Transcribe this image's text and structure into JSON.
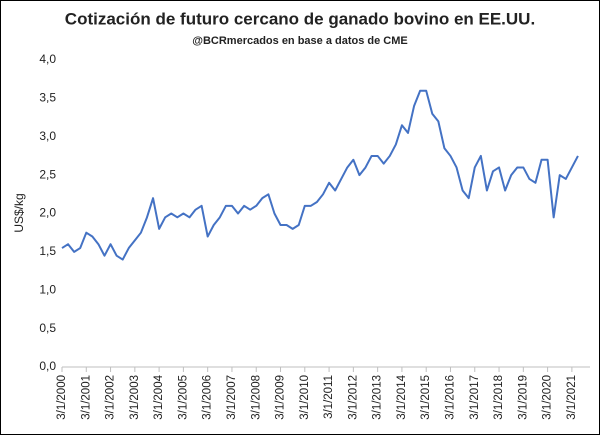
{
  "chart_data": {
    "type": "line",
    "title": "Cotización de futuro cercano de ganado bovino en EE.UU.",
    "subtitle": "@BCRmercados en base a datos de CME",
    "y_label": "US$/kg",
    "categories": [
      "3/1/2000",
      null,
      null,
      null,
      "3/1/2001",
      null,
      null,
      null,
      "3/1/2002",
      null,
      null,
      null,
      "3/1/2003",
      null,
      null,
      null,
      "3/1/2004",
      null,
      null,
      null,
      "3/1/2005",
      null,
      null,
      null,
      "3/1/2006",
      null,
      null,
      null,
      "3/1/2007",
      null,
      null,
      null,
      "3/1/2008",
      null,
      null,
      null,
      "3/1/2009",
      null,
      null,
      null,
      "3/1/2010",
      null,
      null,
      null,
      "3/1/2011",
      null,
      null,
      null,
      "3/1/2012",
      null,
      null,
      null,
      "3/1/2013",
      null,
      null,
      null,
      "3/1/2014",
      null,
      null,
      null,
      "3/1/2015",
      null,
      null,
      null,
      "3/1/2016",
      null,
      null,
      null,
      "3/1/2017",
      null,
      null,
      null,
      "3/1/2018",
      null,
      null,
      null,
      "3/1/2019",
      null,
      null,
      null,
      "3/1/2020",
      null,
      null,
      null,
      "3/1/2021",
      null
    ],
    "series": [
      {
        "name": "Futuro cercano",
        "color": "#4472c4",
        "values": [
          1.55,
          1.6,
          1.5,
          1.55,
          1.75,
          1.7,
          1.6,
          1.45,
          1.6,
          1.45,
          1.4,
          1.55,
          1.65,
          1.75,
          1.95,
          2.2,
          1.8,
          1.95,
          2.0,
          1.95,
          2.0,
          1.95,
          2.05,
          2.1,
          1.7,
          1.85,
          1.95,
          2.1,
          2.1,
          2.0,
          2.1,
          2.05,
          2.1,
          2.2,
          2.25,
          2.0,
          1.85,
          1.85,
          1.8,
          1.85,
          2.1,
          2.1,
          2.15,
          2.25,
          2.4,
          2.3,
          2.45,
          2.6,
          2.7,
          2.5,
          2.6,
          2.75,
          2.75,
          2.65,
          2.75,
          2.9,
          3.15,
          3.05,
          3.4,
          3.6,
          3.6,
          3.3,
          3.2,
          2.85,
          2.75,
          2.6,
          2.3,
          2.2,
          2.6,
          2.75,
          2.3,
          2.55,
          2.6,
          2.3,
          2.5,
          2.6,
          2.6,
          2.45,
          2.4,
          2.7,
          2.7,
          1.95,
          2.5,
          2.45,
          2.6,
          2.75
        ]
      }
    ],
    "ylim": [
      0,
      4
    ],
    "yticks": [
      {
        "value": 0,
        "label": "0,0"
      },
      {
        "value": 0.5,
        "label": "0,5"
      },
      {
        "value": 1,
        "label": "1,0"
      },
      {
        "value": 1.5,
        "label": "1,5"
      },
      {
        "value": 2,
        "label": "2,0"
      },
      {
        "value": 2.5,
        "label": "2,5"
      },
      {
        "value": 3,
        "label": "3,0"
      },
      {
        "value": 3.5,
        "label": "3,5"
      },
      {
        "value": 4,
        "label": "4,0"
      }
    ],
    "grid": false
  }
}
